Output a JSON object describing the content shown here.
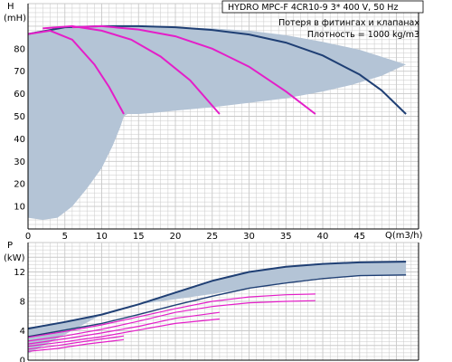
{
  "colors": {
    "region": "#b4c4d6",
    "max_curve": "#1f3f74",
    "second_curve": "#1f3f74",
    "pump_curves": "#e41ec8",
    "grid": "#c9c9c9"
  },
  "chart_data": [
    {
      "type": "line",
      "info": {
        "title": "HYDRO MPC-F 4CR10-9   3* 400 V, 50 Hz",
        "line2": "Потеря в фитингах и клапанах",
        "line3": "Плотность = 1000 kg/m3"
      },
      "y_title": "H",
      "y_unit": "(mH)",
      "x_title": "Q(m3/h)",
      "xlim": [
        0,
        53
      ],
      "ylim": [
        0,
        100
      ],
      "xticks": [
        0,
        5,
        10,
        15,
        20,
        25,
        30,
        35,
        40,
        45
      ],
      "yticks": [
        10,
        20,
        30,
        40,
        50,
        60,
        70,
        80
      ],
      "grid": true,
      "series": [
        {
          "kind": "region",
          "x": [
            0,
            2,
            4,
            5,
            7,
            9,
            11,
            12,
            13.3,
            15,
            17,
            20,
            25,
            30,
            35,
            40,
            45,
            51.3,
            48,
            44,
            40,
            35,
            30,
            25,
            20,
            17,
            15,
            13.5,
            13,
            12.5,
            11.5,
            10,
            8,
            6,
            4,
            2,
            0
          ],
          "y": [
            87,
            88,
            89,
            89.5,
            90,
            90,
            90,
            90,
            90,
            90,
            89.8,
            89.5,
            89,
            88,
            86,
            83,
            79.5,
            73,
            68,
            64,
            61,
            58,
            56,
            54,
            52.5,
            51.5,
            51,
            51,
            50,
            45,
            37,
            27,
            18,
            10,
            5,
            4,
            5
          ]
        },
        {
          "kind": "max",
          "x": [
            0,
            5,
            10,
            15,
            20,
            25,
            30,
            35,
            40,
            45,
            48,
            51.3
          ],
          "y": [
            86.5,
            89.5,
            90,
            90,
            89.5,
            88.3,
            86.3,
            82.7,
            77,
            68.5,
            61.5,
            51
          ]
        },
        {
          "kind": "pump",
          "x": [
            0,
            3,
            6,
            9,
            11,
            13
          ],
          "y": [
            86.5,
            88,
            84,
            73,
            63,
            51
          ]
        },
        {
          "kind": "pump",
          "x": [
            2,
            6,
            10,
            14,
            18,
            22,
            26
          ],
          "y": [
            89,
            90,
            88,
            84,
            76.5,
            66,
            51
          ]
        },
        {
          "kind": "pump",
          "x": [
            6,
            10,
            15,
            20,
            25,
            30,
            35,
            39
          ],
          "y": [
            89.5,
            90,
            88.5,
            85.5,
            80,
            72,
            61,
            51
          ]
        }
      ]
    },
    {
      "type": "line",
      "y_title": "P",
      "y_unit": "(kW)",
      "xlim": [
        0,
        53
      ],
      "ylim": [
        0,
        16
      ],
      "yticks": [
        0,
        4,
        8,
        12
      ],
      "grid": true,
      "series": [
        {
          "kind": "region",
          "x": [
            0,
            5,
            10,
            15,
            20,
            25,
            30,
            35,
            40,
            45,
            51.3,
            51.3,
            45,
            40,
            35,
            30,
            25,
            20,
            15,
            10,
            5,
            0
          ],
          "y": [
            4.3,
            5.2,
            6.2,
            7.6,
            9.2,
            10.8,
            12.0,
            12.7,
            13.1,
            13.3,
            13.4,
            11.6,
            11.5,
            11.2,
            10.6,
            9.8,
            9.0,
            8.3,
            7.6,
            6.2,
            3.5,
            0.9
          ]
        },
        {
          "kind": "max",
          "x": [
            0,
            5,
            10,
            15,
            20,
            25,
            30,
            35,
            40,
            45,
            51.3
          ],
          "y": [
            4.3,
            5.2,
            6.2,
            7.6,
            9.2,
            10.8,
            12.0,
            12.7,
            13.1,
            13.3,
            13.4
          ]
        },
        {
          "kind": "second",
          "x": [
            0,
            5,
            10,
            15,
            20,
            25,
            30,
            35,
            40,
            45,
            51.3
          ],
          "y": [
            3.2,
            4.1,
            5.0,
            6.2,
            7.5,
            8.7,
            9.8,
            10.5,
            11.1,
            11.5,
            11.6
          ]
        },
        {
          "kind": "pump",
          "x": [
            0,
            5,
            10,
            15,
            20,
            25,
            30,
            35,
            39
          ],
          "y": [
            3.1,
            3.9,
            4.8,
            5.9,
            7.0,
            8.0,
            8.6,
            8.9,
            9.0
          ]
        },
        {
          "kind": "pump",
          "x": [
            0,
            5,
            10,
            15,
            20,
            25,
            30,
            35,
            39
          ],
          "y": [
            2.6,
            3.3,
            4.2,
            5.3,
            6.5,
            7.3,
            7.8,
            8.0,
            8.1
          ]
        },
        {
          "kind": "pump",
          "x": [
            0,
            5,
            10,
            15,
            20,
            26
          ],
          "y": [
            2.2,
            2.9,
            3.7,
            4.6,
            5.7,
            6.5
          ]
        },
        {
          "kind": "pump",
          "x": [
            0,
            5,
            10,
            15,
            20,
            26
          ],
          "y": [
            1.9,
            2.5,
            3.2,
            4.1,
            5.0,
            5.6
          ]
        },
        {
          "kind": "pump",
          "x": [
            0,
            4,
            8,
            13
          ],
          "y": [
            1.5,
            2.0,
            2.6,
            3.3
          ]
        },
        {
          "kind": "pump",
          "x": [
            0,
            4,
            8,
            13
          ],
          "y": [
            1.2,
            1.6,
            2.2,
            2.8
          ]
        }
      ]
    }
  ]
}
